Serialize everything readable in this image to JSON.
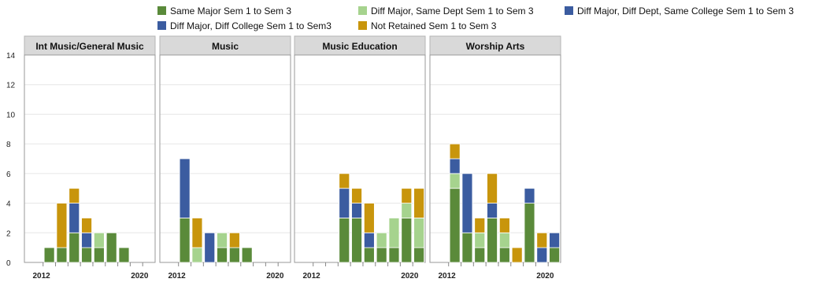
{
  "chart_data": {
    "type": "bar",
    "stacked": true,
    "facets": [
      "Int Music/General Music",
      "Music",
      "Music Education",
      "Worship Arts"
    ],
    "x": [
      2012,
      2013,
      2014,
      2015,
      2016,
      2017,
      2018,
      2019,
      2020
    ],
    "x_tick_labels": [
      "2012",
      "2020"
    ],
    "ylim": [
      0,
      14
    ],
    "y_ticks": [
      0,
      2,
      4,
      6,
      8,
      10,
      12,
      14
    ],
    "grid": true,
    "legend_position": "top",
    "series": [
      {
        "name": "Same Major Sem 1 to Sem 3",
        "color": "#5a8a3a"
      },
      {
        "name": "Diff Major, Same Dept Sem 1 to Sem 3",
        "color": "#a6d38e"
      },
      {
        "name": "Diff Major, Diff Dept, Same College Sem 1 to Sem 3",
        "color": "#3b5ca0"
      },
      {
        "name": "Diff Major, Diff College Sem 1 to Sem3",
        "color": "#3b5ca0"
      },
      {
        "name": "Not Retained Sem 1 to Sem 3",
        "color": "#c8950c"
      }
    ],
    "panels": [
      {
        "title": "Int Music/General Music",
        "bars": [
          {
            "x": 2012.5,
            "values": [
              1,
              0,
              0,
              0,
              0
            ]
          },
          {
            "x": 2013.5,
            "values": [
              1,
              0,
              0,
              0,
              3
            ]
          },
          {
            "x": 2014.5,
            "values": [
              2,
              0,
              2,
              0,
              1
            ]
          },
          {
            "x": 2015.5,
            "values": [
              1,
              0,
              1,
              0,
              1
            ]
          },
          {
            "x": 2016.5,
            "values": [
              1,
              1,
              0,
              0,
              0
            ]
          },
          {
            "x": 2017.5,
            "values": [
              2,
              0,
              0,
              0,
              0
            ]
          },
          {
            "x": 2018.5,
            "values": [
              1,
              0,
              0,
              0,
              0
            ]
          }
        ]
      },
      {
        "title": "Music",
        "bars": [
          {
            "x": 2012.5,
            "values": [
              3,
              0,
              4,
              0,
              0
            ]
          },
          {
            "x": 2013.5,
            "values": [
              0,
              1,
              0,
              0,
              2
            ]
          },
          {
            "x": 2014.5,
            "values": [
              0,
              0,
              2,
              0,
              0
            ]
          },
          {
            "x": 2015.5,
            "values": [
              1,
              1,
              0,
              0,
              0
            ]
          },
          {
            "x": 2016.5,
            "values": [
              1,
              0,
              0,
              0,
              1
            ]
          },
          {
            "x": 2017.5,
            "values": [
              1,
              0,
              0,
              0,
              0
            ]
          }
        ]
      },
      {
        "title": "Music Education",
        "bars": [
          {
            "x": 2014.5,
            "values": [
              3,
              0,
              2,
              0,
              1
            ]
          },
          {
            "x": 2015.5,
            "values": [
              3,
              0,
              1,
              0,
              1
            ]
          },
          {
            "x": 2016.5,
            "values": [
              1,
              0,
              1,
              0,
              2
            ]
          },
          {
            "x": 2017.5,
            "values": [
              1,
              1,
              0,
              0,
              0
            ]
          },
          {
            "x": 2018.5,
            "values": [
              1,
              2,
              0,
              0,
              0
            ]
          },
          {
            "x": 2019.5,
            "values": [
              3,
              1,
              0,
              0,
              1
            ]
          },
          {
            "x": 2020.5,
            "values": [
              1,
              2,
              0,
              0,
              2
            ]
          }
        ]
      },
      {
        "title": "Worship Arts",
        "bars": [
          {
            "x": 2012.5,
            "values": [
              5,
              1,
              1,
              0,
              1
            ]
          },
          {
            "x": 2013.5,
            "values": [
              2,
              0,
              4,
              0,
              0
            ]
          },
          {
            "x": 2014.5,
            "values": [
              1,
              1,
              0,
              0,
              1
            ]
          },
          {
            "x": 2015.5,
            "values": [
              3,
              0,
              1,
              0,
              2
            ]
          },
          {
            "x": 2016.5,
            "values": [
              1,
              1,
              0,
              0,
              1
            ]
          },
          {
            "x": 2017.5,
            "values": [
              0,
              0,
              0,
              0,
              1
            ]
          },
          {
            "x": 2018.5,
            "values": [
              4,
              0,
              1,
              0,
              0
            ]
          },
          {
            "x": 2019.5,
            "values": [
              0,
              0,
              1,
              0,
              1
            ]
          },
          {
            "x": 2020.5,
            "values": [
              1,
              0,
              1,
              0,
              0
            ]
          }
        ]
      }
    ]
  }
}
